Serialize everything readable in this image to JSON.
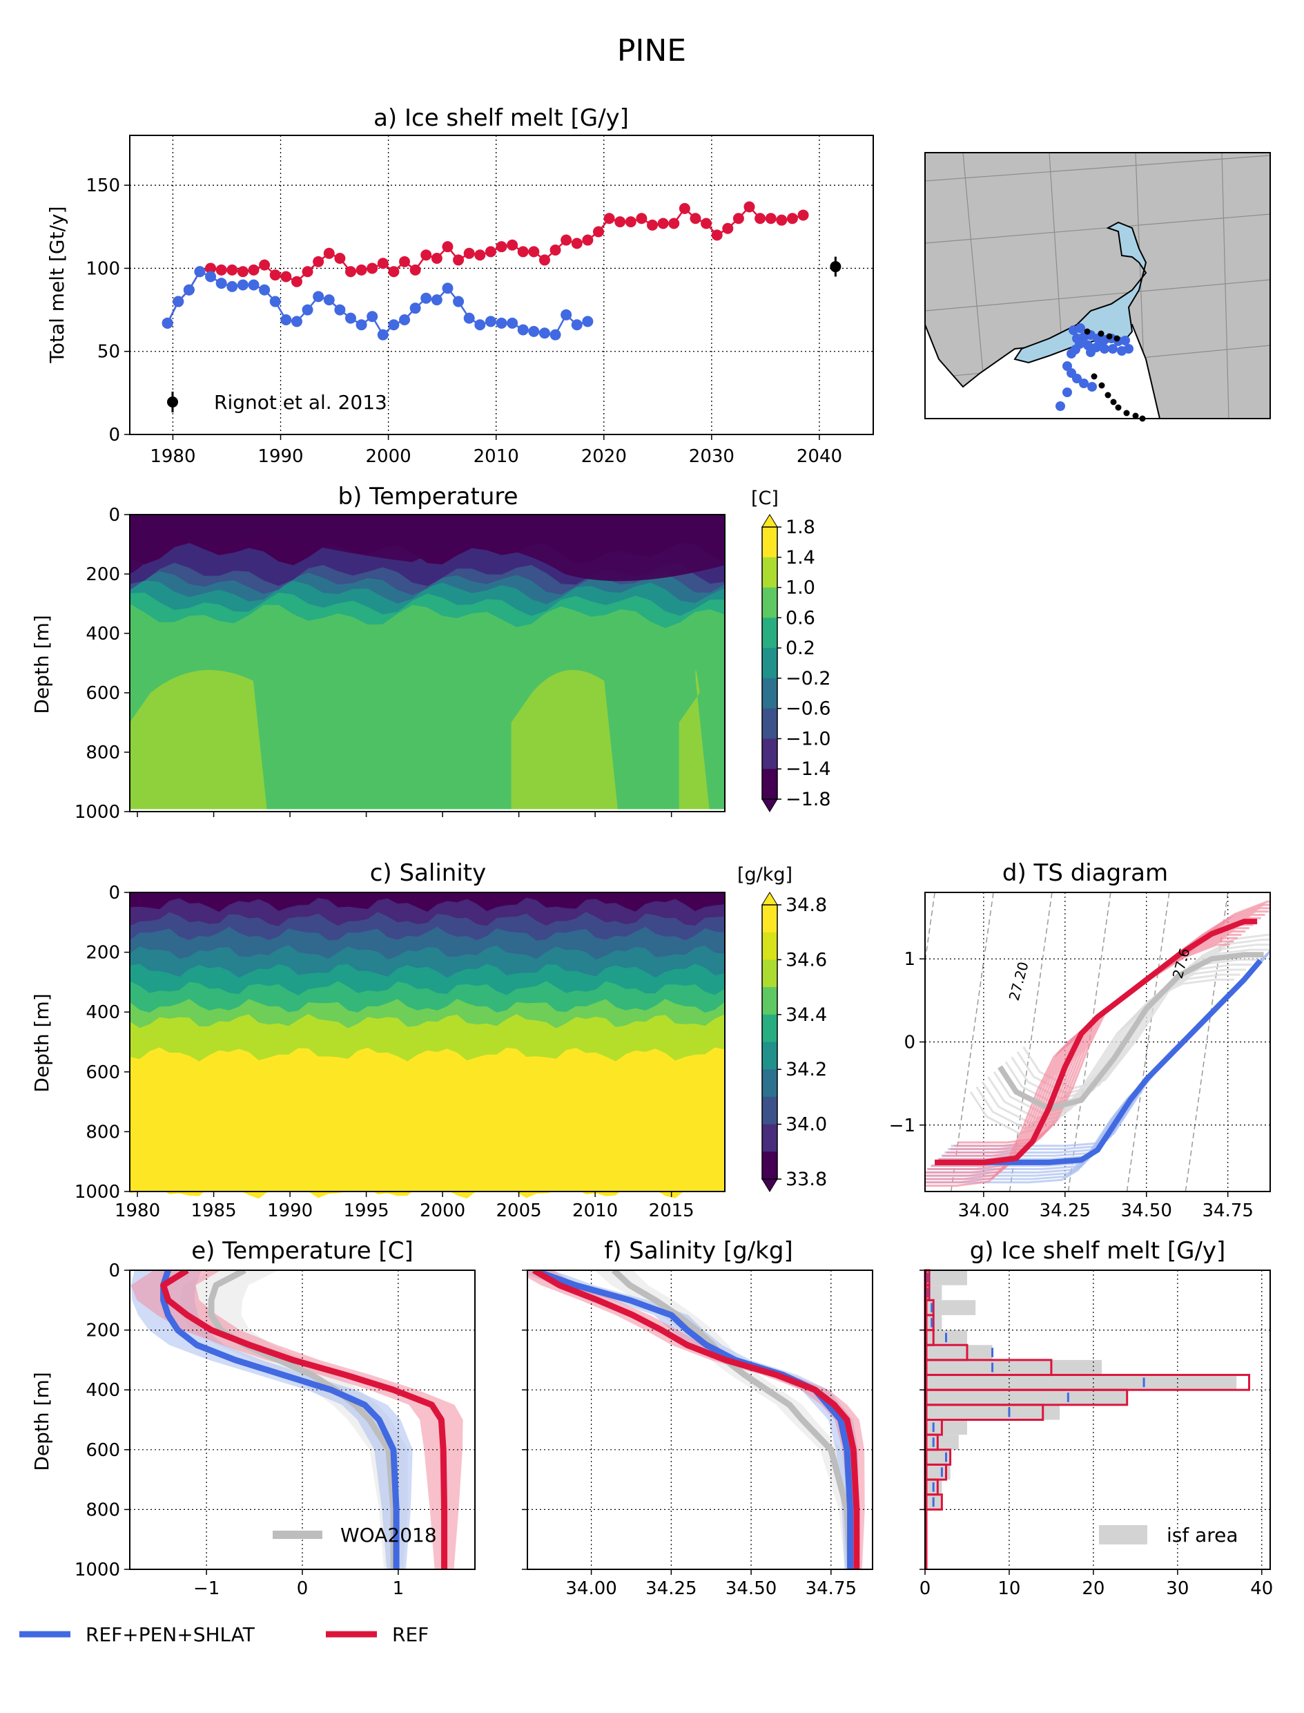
{
  "figure_title": "PINE",
  "colors": {
    "ref": "#DC143C",
    "ref_light": "#F28CA0",
    "pen": "#4169E1",
    "pen_light": "#A8BDF0",
    "obs": "#BDBDBD",
    "obs_light": "#E3E3E3",
    "land": "#BEBEBE",
    "ice_shelf": "#A9D1E6",
    "grid": "#000000"
  },
  "legend": {
    "pen_label": "REF+PEN+SHLAT",
    "ref_label": "REF"
  },
  "map_panel": {
    "land_color": "#BEBEBE",
    "ice_shelf_color": "#A9D1E6",
    "points_blue": "model grid points",
    "points_black": "observation points"
  },
  "chart_data": [
    {
      "id": "a",
      "type": "scatter",
      "title": "a) Ice shelf melt [G/y]",
      "xlabel": "",
      "ylabel": "Total melt [Gt/y]",
      "xlim": [
        1976,
        2045
      ],
      "ylim": [
        0,
        180
      ],
      "xticks": [
        1980,
        1990,
        2000,
        2010,
        2020,
        2030,
        2040
      ],
      "yticks": [
        0,
        50,
        100,
        150
      ],
      "grid": true,
      "series": [
        {
          "name": "REF",
          "color": "#DC143C",
          "x": [
            1979.5,
            1980.5,
            1981.5,
            1982.5,
            1983.5,
            1984.5,
            1985.5,
            1986.5,
            1987.5,
            1988.5,
            1989.5,
            1990.5,
            1991.5,
            1992.5,
            1993.5,
            1994.5,
            1995.5,
            1996.5,
            1997.5,
            1998.5,
            1999.5,
            2000.5,
            2001.5,
            2002.5,
            2003.5,
            2004.5,
            2005.5,
            2006.5,
            2007.5,
            2008.5,
            2009.5,
            2010.5,
            2011.5,
            2012.5,
            2013.5,
            2014.5,
            2015.5,
            2016.5,
            2017.5,
            2018.5,
            2019.5,
            2020.5,
            2021.5,
            2022.5,
            2023.5,
            2024.5,
            2025.5,
            2026.5,
            2027.5,
            2028.5,
            2029.5,
            2030.5,
            2031.5,
            2032.5,
            2033.5,
            2034.5,
            2035.5,
            2036.5,
            2037.5,
            2038.5
          ],
          "y": [
            67,
            80,
            87,
            98,
            100,
            99,
            99,
            98,
            99,
            102,
            96,
            95,
            92,
            98,
            104,
            109,
            106,
            98,
            99,
            100,
            103,
            98,
            104,
            99,
            108,
            106,
            113,
            105,
            109,
            108,
            110,
            113,
            114,
            110,
            110,
            105,
            111,
            117,
            115,
            117,
            122,
            130,
            128,
            128,
            130,
            126,
            127,
            127,
            136,
            130,
            127,
            120,
            124,
            130,
            137,
            130,
            130,
            129,
            130,
            132
          ]
        },
        {
          "name": "REF+PEN+SHLAT",
          "color": "#4169E1",
          "x": [
            1979.5,
            1980.5,
            1981.5,
            1982.5,
            1983.5,
            1984.5,
            1985.5,
            1986.5,
            1987.5,
            1988.5,
            1989.5,
            1990.5,
            1991.5,
            1992.5,
            1993.5,
            1994.5,
            1995.5,
            1996.5,
            1997.5,
            1998.5,
            1999.5,
            2000.5,
            2001.5,
            2002.5,
            2003.5,
            2004.5,
            2005.5,
            2006.5,
            2007.5,
            2008.5,
            2009.5,
            2010.5,
            2011.5,
            2012.5,
            2013.5,
            2014.5,
            2015.5,
            2016.5,
            2017.5,
            2018.5
          ],
          "y": [
            67,
            80,
            87,
            98,
            95,
            91,
            89,
            90,
            90,
            87,
            80,
            69,
            68,
            75,
            83,
            81,
            75,
            70,
            66,
            71,
            60,
            66,
            69,
            76,
            82,
            81,
            88,
            80,
            70,
            66,
            68,
            67,
            67,
            63,
            62,
            61,
            60,
            72,
            66,
            68
          ]
        },
        {
          "name": "Rignot et al. 2013",
          "color": "#000000",
          "x": [
            2041.5
          ],
          "y": [
            101
          ],
          "yerr": [
            6
          ]
        }
      ],
      "legend_entries": [
        "Rignot et al. 2013"
      ],
      "legend_position": "lower-left"
    },
    {
      "id": "b",
      "type": "heatmap",
      "title": "b) Temperature",
      "ylabel": "Depth [m]",
      "xlim": [
        1979.5,
        2018.5
      ],
      "ylim": [
        1000,
        0
      ],
      "yticks": [
        0,
        200,
        400,
        600,
        800,
        1000
      ],
      "colorbar_label": "[C]",
      "colorbar_ticks": [
        "1.8",
        "1.4",
        "1.0",
        "0.6",
        "0.2",
        "−0.2",
        "−0.6",
        "−1.0",
        "−1.4",
        "−1.8"
      ],
      "colorbar_colors": [
        "#440154",
        "#472d7b",
        "#3b528b",
        "#2c728e",
        "#21918c",
        "#28ae80",
        "#5ec962",
        "#addc30",
        "#fde725"
      ],
      "bands_depth": [
        0,
        130,
        200,
        230,
        260,
        300,
        340,
        390,
        420,
        1000
      ],
      "bands_value": [
        "<-1.4",
        "-1.4 to -1.0",
        "-1.0 to -0.6",
        "-0.6 to -0.2",
        "-0.2 to 0.2",
        "0.2 to 0.6",
        "0.6 to 1.0",
        "1.0 to 1.4",
        "1.0 to 1.4"
      ],
      "warm_pockets_years": [
        [
          1979.5,
          1988.5
        ],
        [
          2004.5,
          2011.5
        ],
        [
          2015.5,
          2017.5
        ]
      ]
    },
    {
      "id": "c",
      "type": "heatmap",
      "title": "c) Salinity",
      "ylabel": "Depth [m]",
      "xlim": [
        1979.5,
        2018.5
      ],
      "ylim": [
        1000,
        0
      ],
      "xticks": [
        1980,
        1985,
        1990,
        1995,
        2000,
        2005,
        2010,
        2015
      ],
      "yticks": [
        0,
        200,
        400,
        600,
        800,
        1000
      ],
      "colorbar_label": "[g/kg]",
      "colorbar_ticks": [
        "34.8",
        "34.6",
        "34.4",
        "34.2",
        "34.0",
        "33.8"
      ],
      "bands_depth": [
        0,
        40,
        90,
        140,
        200,
        260,
        320,
        380,
        430,
        540,
        1000
      ],
      "bands_value": [
        33.9,
        34.0,
        34.1,
        34.2,
        34.3,
        34.4,
        34.5,
        34.6,
        34.7,
        34.8
      ]
    },
    {
      "id": "d",
      "type": "line",
      "title": "d) TS diagram",
      "xlim": [
        33.82,
        34.88
      ],
      "ylim": [
        -1.8,
        1.8
      ],
      "xticks": [
        34.0,
        34.25,
        34.5,
        34.75
      ],
      "yticks": [
        -1,
        0,
        1
      ],
      "contour_labels": [
        "27.20",
        "27.6"
      ],
      "series": [
        {
          "name": "REF",
          "s": [
            33.85,
            34.0,
            34.1,
            34.15,
            34.2,
            34.25,
            34.3,
            34.35,
            34.4,
            34.5,
            34.6,
            34.7,
            34.8,
            34.84
          ],
          "t": [
            -1.45,
            -1.45,
            -1.4,
            -1.2,
            -0.8,
            -0.3,
            0.1,
            0.3,
            0.45,
            0.75,
            1.05,
            1.3,
            1.45,
            1.45
          ]
        },
        {
          "name": "REF+PEN+SHLAT",
          "s": [
            33.85,
            34.0,
            34.2,
            34.3,
            34.35,
            34.4,
            34.45,
            34.5,
            34.6,
            34.7,
            34.8,
            34.85
          ],
          "t": [
            -1.45,
            -1.45,
            -1.45,
            -1.42,
            -1.3,
            -1.0,
            -0.7,
            -0.45,
            -0.05,
            0.35,
            0.75,
            0.98
          ]
        },
        {
          "name": "WOA2018",
          "s": [
            34.05,
            34.1,
            34.2,
            34.3,
            34.4,
            34.5,
            34.6,
            34.7,
            34.8,
            34.86
          ],
          "t": [
            -0.3,
            -0.6,
            -0.8,
            -0.7,
            -0.2,
            0.4,
            0.8,
            1.0,
            1.05,
            1.05
          ]
        }
      ]
    },
    {
      "id": "e",
      "type": "line",
      "title": "e) Temperature [C]",
      "ylabel": "Depth [m]",
      "xlim": [
        -1.8,
        1.8
      ],
      "ylim": [
        1000,
        0
      ],
      "xticks": [
        -1,
        0,
        1
      ],
      "yticks": [
        0,
        200,
        400,
        600,
        800,
        1000
      ],
      "legend_entries": [
        "WOA2018"
      ],
      "series": [
        {
          "name": "REF",
          "depth": [
            0,
            50,
            100,
            150,
            200,
            250,
            300,
            350,
            400,
            450,
            500,
            600,
            800,
            1000
          ],
          "value": [
            -1.2,
            -1.45,
            -1.4,
            -1.2,
            -0.95,
            -0.55,
            -0.1,
            0.45,
            0.95,
            1.35,
            1.45,
            1.47,
            1.48,
            1.48
          ]
        },
        {
          "name": "REF+PEN+SHLAT",
          "depth": [
            0,
            50,
            100,
            150,
            200,
            250,
            300,
            350,
            400,
            450,
            500,
            600,
            800,
            1000
          ],
          "value": [
            -1.4,
            -1.45,
            -1.45,
            -1.4,
            -1.3,
            -1.1,
            -0.7,
            -0.2,
            0.3,
            0.65,
            0.8,
            0.95,
            0.98,
            0.98
          ]
        },
        {
          "name": "WOA2018",
          "depth": [
            0,
            50,
            100,
            150,
            200,
            250,
            300,
            350,
            400,
            450,
            500,
            600,
            800,
            1000
          ],
          "value": [
            -0.6,
            -0.9,
            -0.95,
            -0.95,
            -0.85,
            -0.6,
            -0.25,
            0.1,
            0.35,
            0.55,
            0.7,
            0.9,
            0.95,
            0.95
          ]
        }
      ]
    },
    {
      "id": "f",
      "type": "line",
      "title": "f) Salinity [g/kg]",
      "xlim": [
        33.8,
        34.88
      ],
      "ylim": [
        1000,
        0
      ],
      "xticks": [
        34.0,
        34.25,
        34.5,
        34.75
      ],
      "series": [
        {
          "name": "REF",
          "depth": [
            0,
            50,
            100,
            150,
            200,
            250,
            300,
            350,
            400,
            450,
            500,
            600,
            800,
            1000
          ],
          "value": [
            33.82,
            33.9,
            34.02,
            34.13,
            34.22,
            34.3,
            34.42,
            34.58,
            34.7,
            34.76,
            34.8,
            34.82,
            34.83,
            34.83
          ]
        },
        {
          "name": "REF+PEN+SHLAT",
          "depth": [
            0,
            50,
            100,
            150,
            200,
            250,
            300,
            350,
            400,
            450,
            500,
            600,
            800,
            1000
          ],
          "value": [
            33.82,
            33.95,
            34.12,
            34.25,
            34.3,
            34.36,
            34.45,
            34.6,
            34.7,
            34.74,
            34.78,
            34.8,
            34.81,
            34.81
          ]
        },
        {
          "name": "WOA2018",
          "depth": [
            0,
            50,
            100,
            150,
            200,
            250,
            300,
            350,
            400,
            450,
            500,
            600,
            800,
            1000
          ],
          "value": [
            34.07,
            34.12,
            34.2,
            34.27,
            34.33,
            34.38,
            34.42,
            34.48,
            34.55,
            34.62,
            34.66,
            34.75,
            34.8,
            34.81
          ]
        }
      ]
    },
    {
      "id": "g",
      "type": "bar",
      "title": "g) Ice shelf melt [G/y]",
      "xlim": [
        0,
        41
      ],
      "ylim": [
        1000,
        0
      ],
      "xticks": [
        0,
        10,
        20,
        30,
        40
      ],
      "legend_entries": [
        "isf area"
      ],
      "bin_depths": [
        0,
        50,
        100,
        150,
        200,
        250,
        300,
        350,
        400,
        450,
        500,
        550,
        600,
        650,
        700,
        750,
        800,
        850,
        900,
        950
      ],
      "series": [
        {
          "name": "isf area",
          "values": [
            5,
            2,
            6,
            2,
            5,
            8,
            21,
            37,
            24,
            16,
            5,
            4,
            3,
            3,
            2,
            2,
            0,
            0,
            0,
            0
          ]
        },
        {
          "name": "REF",
          "values": [
            0.5,
            0.5,
            1,
            1,
            1,
            5,
            15,
            38.5,
            24,
            14,
            2,
            1.5,
            3,
            2.5,
            1.5,
            2,
            0,
            0,
            0,
            0
          ]
        },
        {
          "name": "REF+PEN+SHLAT",
          "values": [
            0.3,
            0.3,
            0.8,
            0.8,
            2.5,
            8,
            8,
            26,
            17,
            10,
            1,
            1,
            2.5,
            2,
            1,
            1,
            0,
            0,
            0,
            0
          ]
        }
      ]
    }
  ]
}
